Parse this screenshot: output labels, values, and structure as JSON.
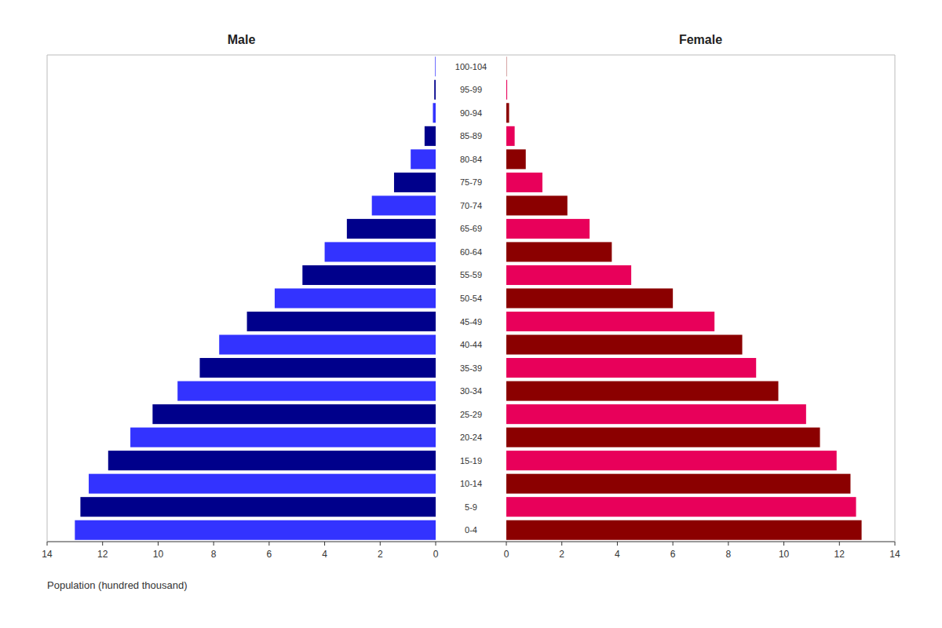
{
  "chart_data": {
    "type": "pyramid",
    "orientation": "horizontal",
    "categories": [
      "0-4",
      "5-9",
      "10-14",
      "15-19",
      "20-24",
      "25-29",
      "30-34",
      "35-39",
      "40-44",
      "45-49",
      "50-54",
      "55-59",
      "60-64",
      "65-69",
      "70-74",
      "75-79",
      "80-84",
      "85-89",
      "90-94",
      "95-99",
      "100-104"
    ],
    "series": [
      {
        "name": "Male",
        "colors": [
          "#3333ff",
          "#00008b",
          "#3333ff",
          "#00008b",
          "#3333ff",
          "#00008b",
          "#3333ff",
          "#00008b",
          "#3333ff",
          "#00008b",
          "#3333ff",
          "#00008b",
          "#3333ff",
          "#00008b",
          "#3333ff",
          "#00008b",
          "#3333ff",
          "#00008b",
          "#3333ff",
          "#00008b",
          "#3333ff"
        ],
        "values": [
          13.0,
          12.8,
          12.5,
          11.8,
          11.0,
          10.2,
          9.3,
          8.5,
          7.8,
          6.8,
          5.8,
          4.8,
          4.0,
          3.2,
          2.3,
          1.5,
          0.9,
          0.4,
          0.1,
          0.05,
          0.02
        ]
      },
      {
        "name": "Female",
        "colors": [
          "#8b0000",
          "#e8005a",
          "#8b0000",
          "#e8005a",
          "#8b0000",
          "#e8005a",
          "#8b0000",
          "#e8005a",
          "#8b0000",
          "#e8005a",
          "#8b0000",
          "#e8005a",
          "#8b0000",
          "#e8005a",
          "#8b0000",
          "#e8005a",
          "#8b0000",
          "#e8005a",
          "#8b0000",
          "#e8005a",
          "#8b0000"
        ],
        "values": [
          12.8,
          12.6,
          12.4,
          11.9,
          11.3,
          10.8,
          9.8,
          9.0,
          8.5,
          7.5,
          6.0,
          4.5,
          3.8,
          3.0,
          2.2,
          1.3,
          0.7,
          0.3,
          0.1,
          0.03,
          0.01
        ]
      }
    ],
    "xlabel": "Population (hundred thousand)",
    "xlim": [
      0,
      14
    ],
    "xticks": [
      0,
      2,
      4,
      6,
      8,
      10,
      12,
      14
    ],
    "grid": false
  }
}
